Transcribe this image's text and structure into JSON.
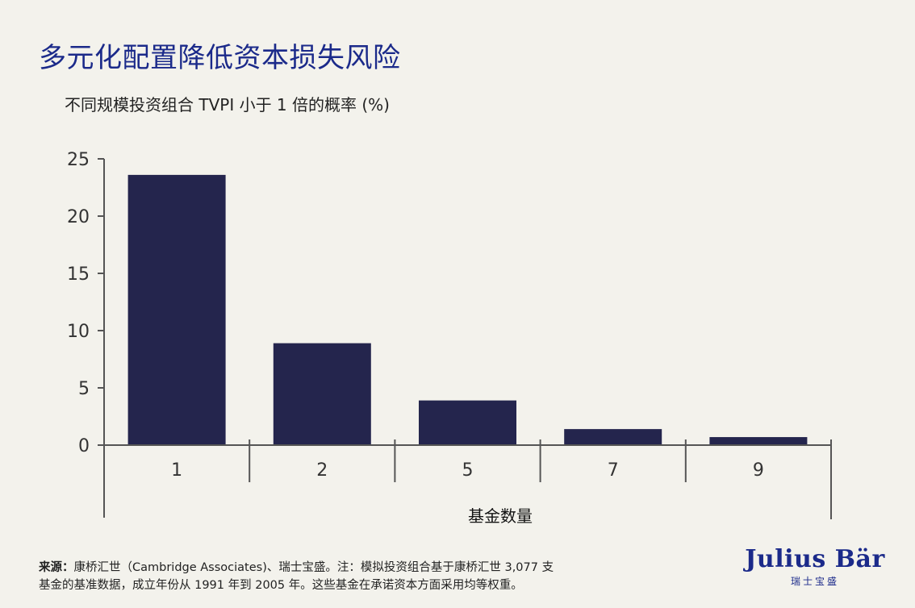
{
  "title": "多元化配置降低资本损失风险",
  "subtitle": "不同规模投资组合 TVPI 小于 1 倍的概率 (%)",
  "footnote": {
    "source_label": "来源：",
    "line1": "康桥汇世（Cambridge Associates)、瑞士宝盛。注：模拟投资组合基于康桥汇世 3,077 支",
    "note_label": "注：",
    "line2": "基金的基准数据，成立年份从 1991 年到 2005 年。这些基金在承诺资本方面采用均等权重。"
  },
  "logo": {
    "main": "Julius Bär",
    "sub": "瑞士宝盛"
  },
  "colors": {
    "bar": "#24254d",
    "title": "#1b2a8a",
    "axis": "#555555",
    "background": "#f3f2ec"
  },
  "chart_data": {
    "type": "bar",
    "title": "多元化配置降低资本损失风险",
    "subtitle": "不同规模投资组合 TVPI 小于 1 倍的概率 (%)",
    "xlabel": "基金数量",
    "ylabel": "",
    "categories": [
      "1",
      "2",
      "5",
      "7",
      "9"
    ],
    "values": [
      23.6,
      8.9,
      3.9,
      1.4,
      0.7
    ],
    "yticks": [
      0,
      5,
      10,
      15,
      20,
      25
    ],
    "ylim": [
      0,
      25
    ],
    "grid": false,
    "legend": null
  }
}
